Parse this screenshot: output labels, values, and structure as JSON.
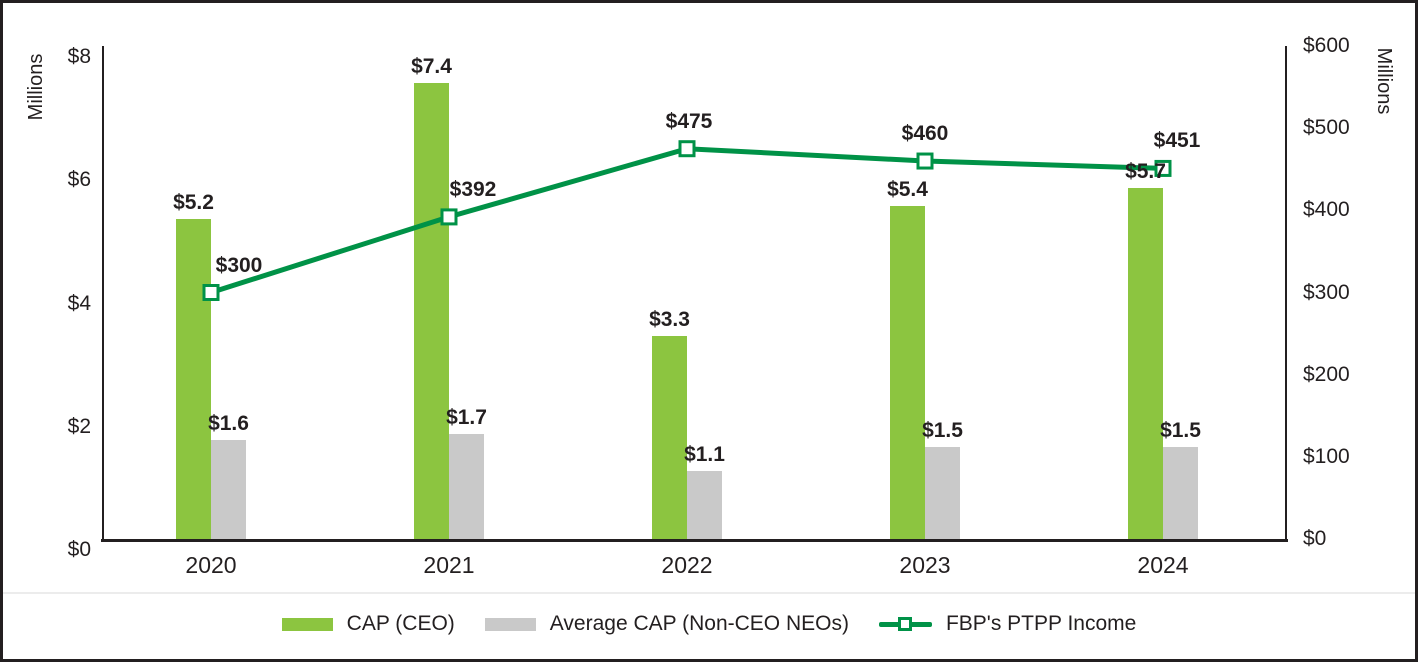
{
  "chart_data": {
    "type": "combo",
    "categories": [
      "2020",
      "2021",
      "2022",
      "2023",
      "2024"
    ],
    "series": [
      {
        "name": "CAP (CEO)",
        "type": "bar",
        "axis": "left",
        "color": "#8CC540",
        "values": [
          5.2,
          7.4,
          3.3,
          5.4,
          5.7
        ],
        "labels": [
          "$5.2",
          "$7.4",
          "$3.3",
          "$5.4",
          "$5.7"
        ]
      },
      {
        "name": "Average CAP (Non-CEO NEOs)",
        "type": "bar",
        "axis": "left",
        "color": "#C9C9C9",
        "values": [
          1.6,
          1.7,
          1.1,
          1.5,
          1.5
        ],
        "labels": [
          "$1.6",
          "$1.7",
          "$1.1",
          "$1.5",
          "$1.5"
        ]
      },
      {
        "name": "FBP's PTPP Income",
        "type": "line",
        "axis": "right",
        "color": "#009247",
        "marker": "open-square",
        "values": [
          300,
          392,
          475,
          460,
          451
        ],
        "labels": [
          "$300",
          "$392",
          "$475",
          "$460",
          "$451"
        ]
      }
    ],
    "left_axis": {
      "title": "Millions",
      "min": 0,
      "max": 8,
      "ticks": [
        "$8",
        "$6",
        "$4",
        "$2",
        "$0"
      ]
    },
    "right_axis": {
      "title": "Millions",
      "min": 0,
      "max": 600,
      "ticks": [
        "$600",
        "$500",
        "$400",
        "$300",
        "$200",
        "$100",
        "$0"
      ]
    },
    "legend": {
      "position": "bottom"
    },
    "grid": false,
    "text_color": "#231F20"
  }
}
